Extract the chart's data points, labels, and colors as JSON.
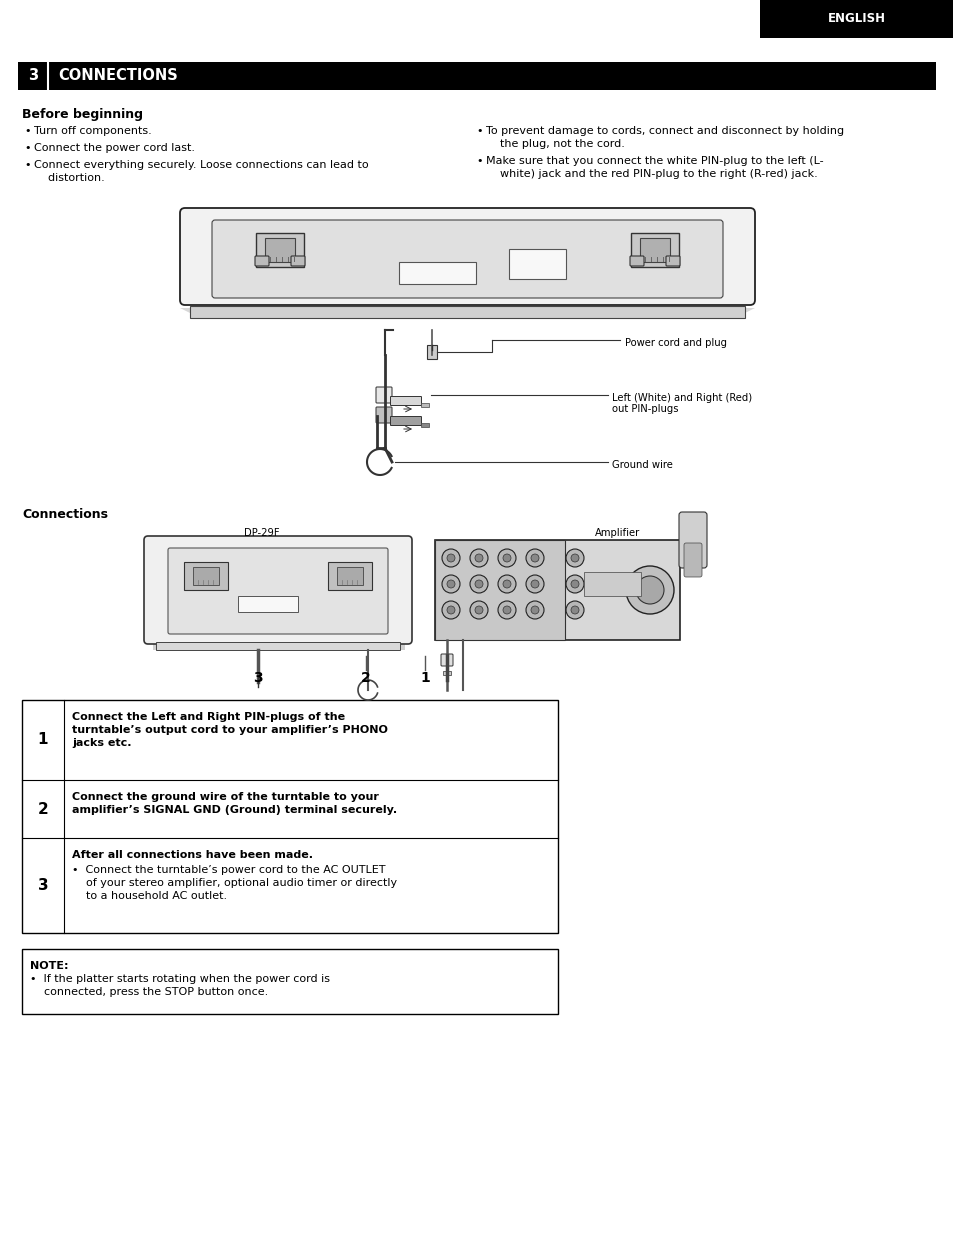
{
  "page_bg": "#ffffff",
  "header_bg": "#000000",
  "header_text": "ENGLISH",
  "header_text_color": "#ffffff",
  "section_bar_bg": "#000000",
  "section_number": "3",
  "section_title": "CONNECTIONS",
  "section_text_color": "#ffffff",
  "before_beginning_title": "Before beginning",
  "bullet_col1_lines": [
    [
      "Turn off components."
    ],
    [
      "Connect the power cord last."
    ],
    [
      "Connect everything securely. Loose connections can lead to",
      "    distortion."
    ]
  ],
  "bullet_col2_lines": [
    [
      "To prevent damage to cords, connect and disconnect by holding",
      "    the plug, not the cord."
    ],
    [
      "Make sure that you connect the white PIN-plug to the left (L-",
      "    white) jack and the red PIN-plug to the right (R-red) jack."
    ]
  ],
  "label_power_cord": "Power cord and plug",
  "label_pin_plugs_line1": "Left (White) and Right (Red)",
  "label_pin_plugs_line2": "out PIN-plugs",
  "label_ground": "Ground wire",
  "connections_title": "Connections",
  "label_dp29f": "DP-29F",
  "label_amplifier": "Amplifier",
  "table_row1_num": "1",
  "table_row1_lines": [
    "Connect the Left and Right PIN-plugs of the",
    "turntable’s output cord to your amplifier’s PHONO",
    "jacks etc."
  ],
  "table_row2_num": "2",
  "table_row2_lines": [
    "Connect the ground wire of the turntable to your",
    "amplifier’s SIGNAL GND (Ground) terminal securely."
  ],
  "table_row3_num": "3",
  "table_row3_bold": "After all connections have been made.",
  "table_row3_lines": [
    "•  Connect the turntable’s power cord to the AC OUTLET",
    "    of your stereo amplifier, optional audio timer or directly",
    "    to a household AC outlet."
  ],
  "note_title": "NOTE:",
  "note_lines": [
    "•  If the platter starts rotating when the power cord is",
    "    connected, press the STOP button once."
  ],
  "fs_body": 8.0,
  "fs_small": 7.2,
  "fs_section": 10.5,
  "fs_header": 8.5,
  "fs_bold_title": 9.0
}
